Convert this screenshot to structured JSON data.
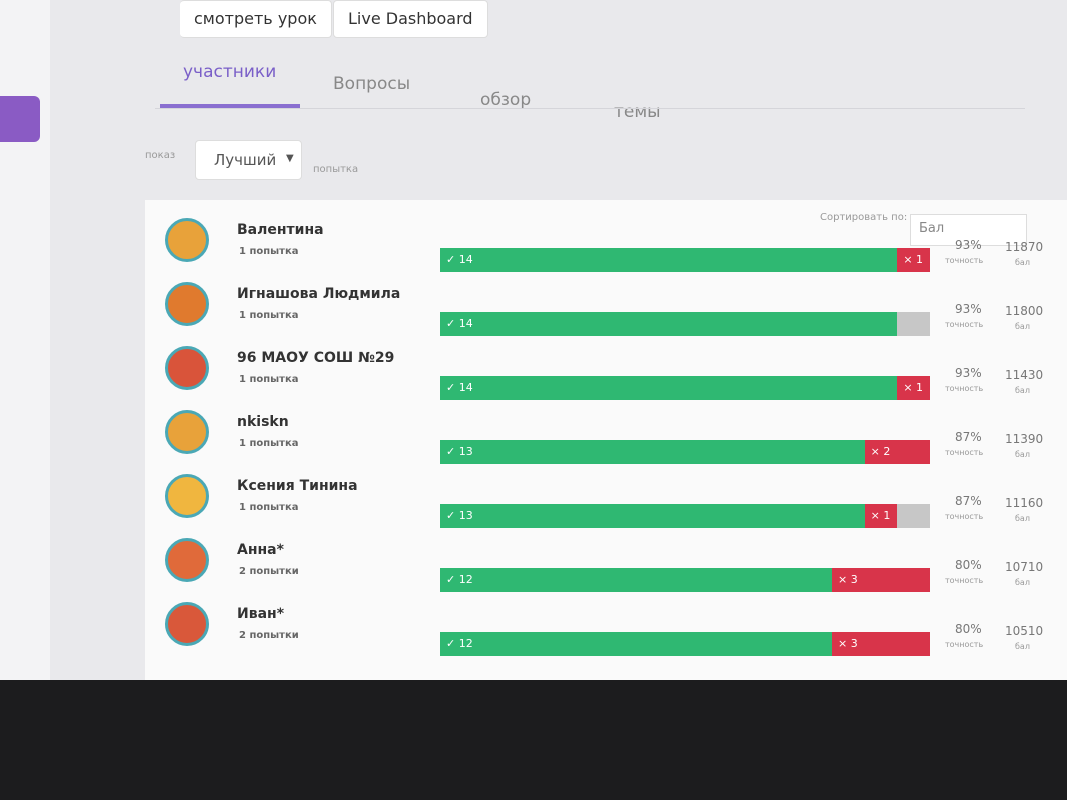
{
  "header": {
    "buttons": [
      "смотреть урок",
      "Live Dashboard"
    ]
  },
  "tabs": [
    "участники",
    "Вопросы",
    "обзор",
    "темы"
  ],
  "filter": {
    "label": "показ",
    "select": "Лучший",
    "suffix": "попытка"
  },
  "sort": {
    "label": "Сортировать по:",
    "select": "Бал"
  },
  "columns": {
    "accuracy": "точность",
    "score": "бал"
  },
  "total_questions": 15,
  "participants": [
    {
      "name": "Валентина",
      "attempts": "1 попытка",
      "correct": 14,
      "incorrect": 1,
      "skipped": 0,
      "accuracy": "93%",
      "score": "11870"
    },
    {
      "name": "Игнашова Людмила",
      "attempts": "1 попытка",
      "correct": 14,
      "incorrect": 0,
      "skipped": 1,
      "accuracy": "93%",
      "score": "11800"
    },
    {
      "name": "96 МАОУ СОШ №29",
      "attempts": "1 попытка",
      "correct": 14,
      "incorrect": 1,
      "skipped": 0,
      "accuracy": "93%",
      "score": "11430"
    },
    {
      "name": "nkiskn",
      "attempts": "1 попытка",
      "correct": 13,
      "incorrect": 2,
      "skipped": 0,
      "accuracy": "87%",
      "score": "11390"
    },
    {
      "name": "Ксения Тинина",
      "attempts": "1 попытка",
      "correct": 13,
      "incorrect": 1,
      "skipped": 1,
      "accuracy": "87%",
      "score": "11160"
    },
    {
      "name": "Анна*",
      "attempts": "2 попытки",
      "correct": 12,
      "incorrect": 3,
      "skipped": 0,
      "accuracy": "80%",
      "score": "10710"
    },
    {
      "name": "Иван*",
      "attempts": "2 попытки",
      "correct": 12,
      "incorrect": 3,
      "skipped": 0,
      "accuracy": "80%",
      "score": "10510"
    }
  ]
}
